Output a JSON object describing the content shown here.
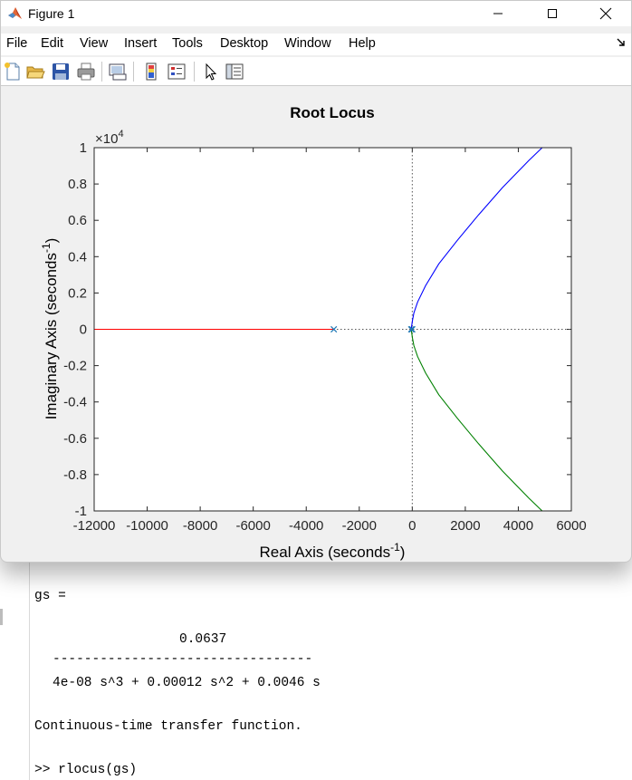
{
  "window": {
    "title": "Figure 1",
    "menu": [
      "File",
      "Edit",
      "View",
      "Insert",
      "Tools",
      "Desktop",
      "Window",
      "Help"
    ],
    "toolbar_icons": [
      "new-figure-icon",
      "open-file-icon",
      "save-icon",
      "print-icon",
      "link-plot-icon",
      "insert-colorbar-icon",
      "insert-legend-icon",
      "edit-plot-icon",
      "property-inspector-icon"
    ]
  },
  "command_window": {
    "lines": [
      "gs =",
      "0.0637",
      "---------------------------------",
      "4e-08 s^3 + 0.00012 s^2 + 0.0046 s",
      "Continuous-time transfer function.",
      ">> rlocus(gs)"
    ]
  },
  "colors": {
    "branch_1": "#0000ff",
    "branch_2": "#008000",
    "branch_3": "#ff0000",
    "poles": "#1f77b4"
  },
  "chart_data": {
    "type": "line",
    "title": "Root Locus",
    "xlabel": "Real Axis (seconds",
    "ylabel": "Imaginary Axis (seconds",
    "label_exponent": "-1",
    "label_close": ")",
    "y_multiplier": "×10",
    "y_multiplier_exp": "4",
    "xlim": [
      -12000,
      6000
    ],
    "ylim": [
      -10000,
      10000
    ],
    "xticks": [
      "-12000",
      "-10000",
      "-8000",
      "-6000",
      "-4000",
      "-2000",
      "0",
      "2000",
      "4000",
      "6000"
    ],
    "yticks": [
      "-1",
      "-0.8",
      "-0.6",
      "-0.4",
      "-0.2",
      "0",
      "0.2",
      "0.4",
      "0.6",
      "0.8",
      "1"
    ],
    "poles": [
      [
        0,
        0
      ],
      [
        -40,
        0
      ],
      [
        -2960,
        0
      ]
    ],
    "series": [
      {
        "color": "#0000ff",
        "points": [
          [
            -40,
            0
          ],
          [
            -20,
            200
          ],
          [
            10,
            500
          ],
          [
            60,
            900
          ],
          [
            200,
            1500
          ],
          [
            500,
            2400
          ],
          [
            1000,
            3600
          ],
          [
            1700,
            4900
          ],
          [
            2500,
            6300
          ],
          [
            3400,
            7800
          ],
          [
            4400,
            9300
          ],
          [
            4900,
            10000
          ]
        ]
      },
      {
        "color": "#008000",
        "points": [
          [
            -40,
            0
          ],
          [
            -20,
            -200
          ],
          [
            10,
            -500
          ],
          [
            60,
            -900
          ],
          [
            200,
            -1500
          ],
          [
            500,
            -2400
          ],
          [
            1000,
            -3600
          ],
          [
            1700,
            -4900
          ],
          [
            2500,
            -6300
          ],
          [
            3400,
            -7800
          ],
          [
            4400,
            -9300
          ],
          [
            4900,
            -10000
          ]
        ]
      },
      {
        "color": "#ff0000",
        "points": [
          [
            -2960,
            0
          ],
          [
            -12000,
            0
          ]
        ]
      }
    ]
  }
}
